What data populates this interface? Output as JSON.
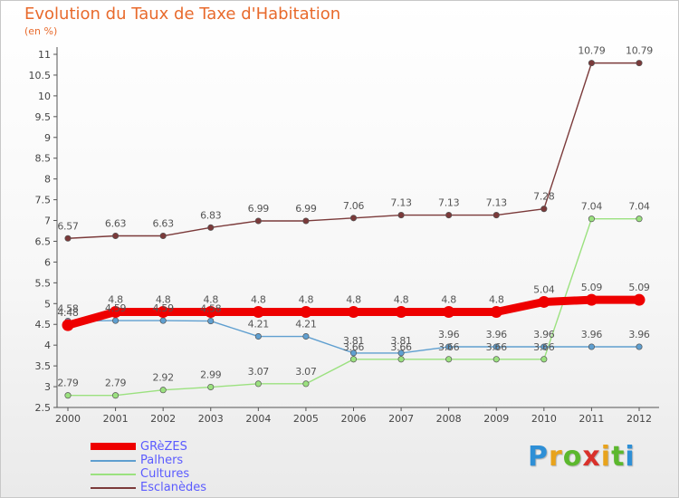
{
  "header": {
    "title": "Evolution du Taux de Taxe d'Habitation",
    "subtitle": "(en %)"
  },
  "logo": {
    "text": "Proxiti",
    "colors": [
      "#2e8fd6",
      "#e8a31c",
      "#5cb82e",
      "#d9312b",
      "#e8a31c",
      "#5cb82e",
      "#2e8fd6"
    ]
  },
  "chart_data": {
    "type": "line",
    "x": [
      "2000",
      "2001",
      "2002",
      "2003",
      "2004",
      "2005",
      "2006",
      "2007",
      "2008",
      "2009",
      "2010",
      "2011",
      "2012"
    ],
    "ylim": [
      2.5,
      11
    ],
    "yticks": [
      2.5,
      3,
      3.5,
      4,
      4.5,
      5,
      5.5,
      6,
      6.5,
      7,
      7.5,
      8,
      8.5,
      9,
      9.5,
      10,
      10.5,
      11
    ],
    "ytick_labels": [
      "2.5",
      "3",
      "3.5",
      "4",
      "4.5",
      "5",
      "5.5",
      "6",
      "6.5",
      "7",
      "7.5",
      "8",
      "8.5",
      "9",
      "9.5",
      "10",
      "10.5",
      "11"
    ],
    "grid": false,
    "legend_position": "bottom-left",
    "series": [
      {
        "name": "GRèZES",
        "color": "#ee0000",
        "values": [
          4.48,
          4.8,
          4.8,
          4.8,
          4.8,
          4.8,
          4.8,
          4.8,
          4.8,
          4.8,
          5.04,
          5.09,
          5.09
        ],
        "labels": [
          "4.48",
          "4.8",
          "4.8",
          "4.8",
          "4.8",
          "4.8",
          "4.8",
          "4.8",
          "4.8",
          "4.8",
          "5.04",
          "5.09",
          "5.09"
        ]
      },
      {
        "name": "Palhers",
        "color": "#5f9fd0",
        "values": [
          4.58,
          4.59,
          4.59,
          4.58,
          4.21,
          4.21,
          3.81,
          3.81,
          3.96,
          3.96,
          3.96,
          3.96,
          3.96
        ],
        "labels": [
          "4.58",
          "4.59",
          "4.59",
          "4.58",
          "4.21",
          "4.21",
          "3.81",
          "3.81",
          "3.96",
          "3.96",
          "3.96",
          "3.96",
          "3.96"
        ]
      },
      {
        "name": "Cultures",
        "color": "#9be17f",
        "values": [
          2.79,
          2.79,
          2.92,
          2.99,
          3.07,
          3.07,
          3.66,
          3.66,
          3.66,
          3.66,
          3.66,
          7.04,
          7.04
        ],
        "labels": [
          "2.79",
          "2.79",
          "2.92",
          "2.99",
          "3.07",
          "3.07",
          "3.66",
          "3.66",
          "3.66",
          "3.66",
          "3.66",
          "7.04",
          "7.04"
        ]
      },
      {
        "name": "Esclanèdes",
        "color": "#7b3a3a",
        "values": [
          6.57,
          6.63,
          6.63,
          6.83,
          6.99,
          6.99,
          7.06,
          7.13,
          7.13,
          7.13,
          7.28,
          10.79,
          10.79
        ],
        "labels": [
          "6.57",
          "6.63",
          "6.63",
          "6.83",
          "6.99",
          "6.99",
          "7.06",
          "7.13",
          "7.13",
          "7.13",
          "7.28",
          "10.79",
          "10.79"
        ]
      }
    ]
  }
}
